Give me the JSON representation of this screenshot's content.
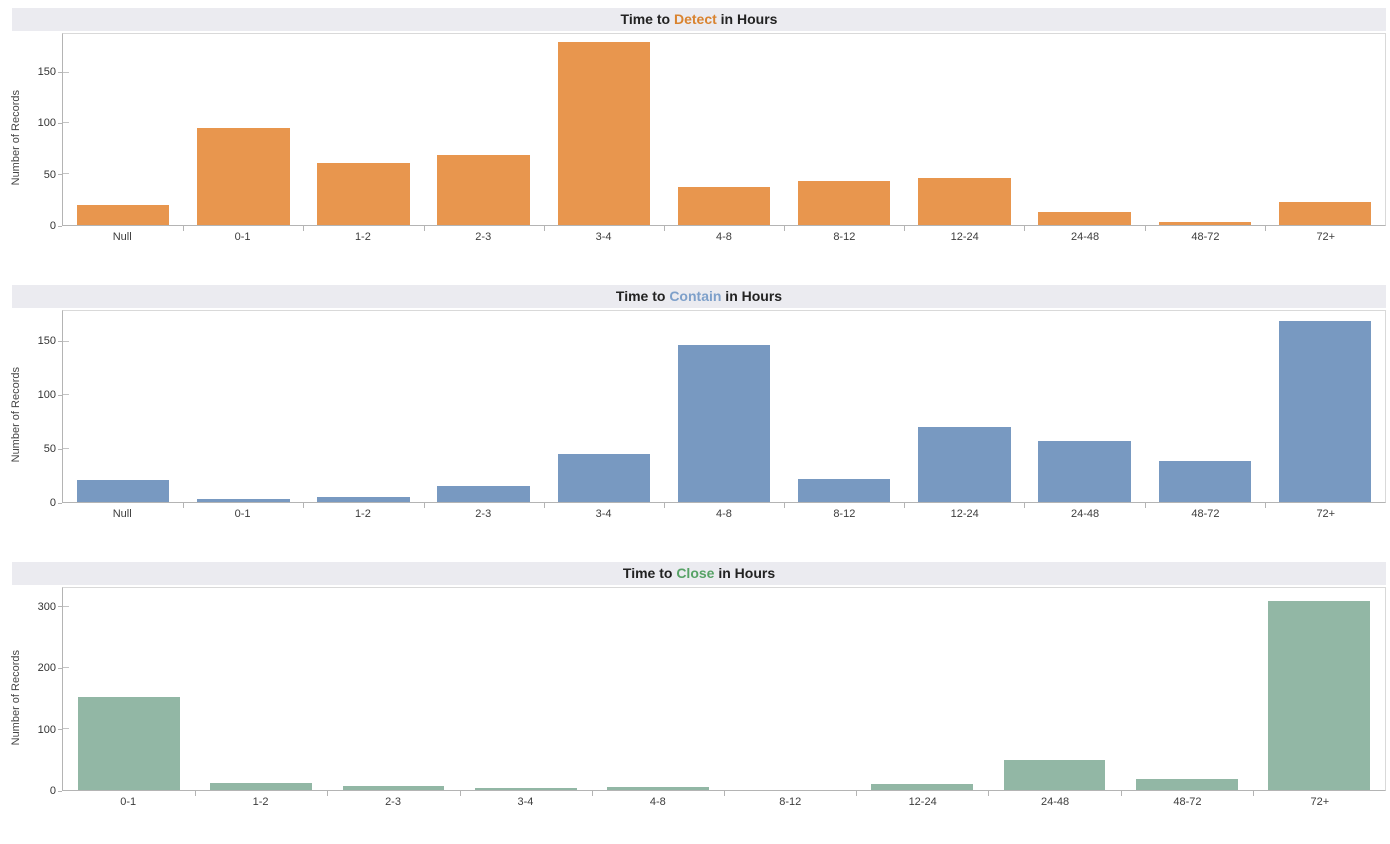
{
  "colors": {
    "title_bar_bg": "#ebebf0",
    "title_text": "#222222",
    "axis_line": "#b4b4b4",
    "plot_border": "#d9d9d9",
    "tick_label": "#333333",
    "detect_accent": "#d9832f",
    "contain_accent": "#7ea0ca",
    "close_accent": "#57a266"
  },
  "chart_data": [
    {
      "type": "bar",
      "title": "Time to Detect in Hours",
      "title_parts": {
        "prefix": "Time to ",
        "keyword": "Detect",
        "suffix": " in Hours"
      },
      "keyword_color": "#d9832f",
      "bar_color": "#e8964e",
      "ylabel": "Number of Records",
      "xlabel": "",
      "categories": [
        "Null",
        "0-1",
        "1-2",
        "2-3",
        "3-4",
        "4-8",
        "8-12",
        "12-24",
        "24-48",
        "48-72",
        "72+"
      ],
      "values": [
        20,
        95,
        61,
        69,
        180,
        37,
        43,
        46,
        13,
        3,
        23
      ],
      "yticks": [
        0,
        50,
        100,
        150
      ],
      "ylim": [
        0,
        188
      ],
      "grid": false,
      "legend": "none"
    },
    {
      "type": "bar",
      "title": "Time to Contain in Hours",
      "title_parts": {
        "prefix": "Time to ",
        "keyword": "Contain",
        "suffix": " in Hours"
      },
      "keyword_color": "#7ea0ca",
      "bar_color": "#7899c1",
      "ylabel": "Number of Records",
      "xlabel": "",
      "categories": [
        "Null",
        "0-1",
        "1-2",
        "2-3",
        "3-4",
        "4-8",
        "8-12",
        "12-24",
        "24-48",
        "48-72",
        "72+"
      ],
      "values": [
        21,
        3,
        5,
        15,
        45,
        147,
        22,
        70,
        57,
        38,
        170
      ],
      "yticks": [
        0,
        50,
        100,
        150
      ],
      "ylim": [
        0,
        179
      ],
      "grid": false,
      "legend": "none"
    },
    {
      "type": "bar",
      "title": "Time to Close in Hours",
      "title_parts": {
        "prefix": "Time to ",
        "keyword": "Close",
        "suffix": " in Hours"
      },
      "keyword_color": "#57a266",
      "bar_color": "#92b7a5",
      "ylabel": "Number of Records",
      "xlabel": "",
      "categories": [
        "0-1",
        "1-2",
        "2-3",
        "3-4",
        "4-8",
        "8-12",
        "12-24",
        "24-48",
        "48-72",
        "72+"
      ],
      "values": [
        153,
        12,
        6,
        3,
        5,
        0,
        10,
        50,
        18,
        310
      ],
      "yticks": [
        0,
        100,
        200,
        300
      ],
      "ylim": [
        0,
        332
      ],
      "grid": false,
      "legend": "none"
    }
  ]
}
